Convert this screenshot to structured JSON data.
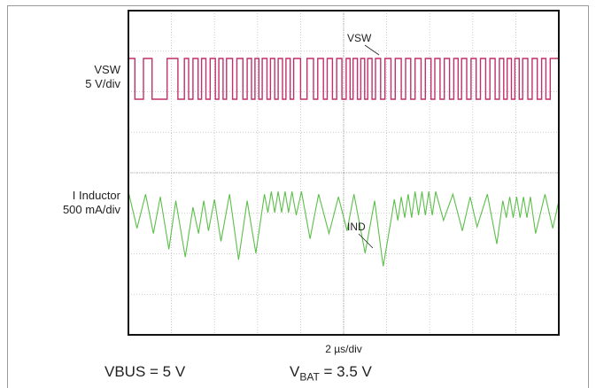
{
  "chart_data": {
    "type": "line",
    "title": "",
    "xlabel": "2 µs/div",
    "grid": true,
    "divisions": {
      "x": 10,
      "y": 8
    },
    "series": [
      {
        "name": "VSW",
        "axis_label": [
          "VSW",
          "5 V/div"
        ],
        "color": "#c0306a",
        "kind": "square-wave",
        "high": 1,
        "low": 0,
        "segments": [
          [
            0.0,
            1
          ],
          [
            1.5,
            0
          ],
          [
            3.5,
            1
          ],
          [
            5.5,
            0
          ],
          [
            9.0,
            1
          ],
          [
            11.5,
            0
          ],
          [
            13.0,
            1
          ],
          [
            14.0,
            0
          ],
          [
            15.0,
            1
          ],
          [
            16.2,
            0
          ],
          [
            17.0,
            1
          ],
          [
            18.0,
            0
          ],
          [
            19.0,
            1
          ],
          [
            20.2,
            0
          ],
          [
            21.0,
            1
          ],
          [
            22.0,
            0
          ],
          [
            22.8,
            1
          ],
          [
            24.2,
            0
          ],
          [
            25.2,
            1
          ],
          [
            26.6,
            0
          ],
          [
            27.6,
            1
          ],
          [
            28.6,
            0
          ],
          [
            29.4,
            1
          ],
          [
            30.3,
            0
          ],
          [
            31.1,
            1
          ],
          [
            32.2,
            0
          ],
          [
            33.0,
            1
          ],
          [
            34.0,
            0
          ],
          [
            34.8,
            1
          ],
          [
            35.8,
            0
          ],
          [
            36.6,
            1
          ],
          [
            37.6,
            0
          ],
          [
            38.4,
            1
          ],
          [
            40.0,
            0
          ],
          [
            41.5,
            1
          ],
          [
            43.0,
            0
          ],
          [
            44.0,
            1
          ],
          [
            45.3,
            0
          ],
          [
            46.2,
            1
          ],
          [
            47.4,
            0
          ],
          [
            48.4,
            1
          ],
          [
            49.6,
            0
          ],
          [
            50.6,
            1
          ],
          [
            51.5,
            0
          ],
          [
            52.2,
            1
          ],
          [
            53.2,
            0
          ],
          [
            54.0,
            1
          ],
          [
            54.9,
            0
          ],
          [
            55.6,
            1
          ],
          [
            56.6,
            0
          ],
          [
            57.4,
            1
          ],
          [
            58.6,
            0
          ],
          [
            59.6,
            1
          ],
          [
            61.0,
            0
          ],
          [
            62.0,
            1
          ],
          [
            63.4,
            0
          ],
          [
            64.4,
            1
          ],
          [
            65.6,
            0
          ],
          [
            66.6,
            1
          ],
          [
            68.0,
            0
          ],
          [
            69.0,
            1
          ],
          [
            70.3,
            0
          ],
          [
            71.2,
            1
          ],
          [
            72.4,
            0
          ],
          [
            73.4,
            1
          ],
          [
            74.6,
            0
          ],
          [
            75.6,
            1
          ],
          [
            76.6,
            0
          ],
          [
            77.4,
            1
          ],
          [
            78.6,
            0
          ],
          [
            79.6,
            1
          ],
          [
            80.8,
            0
          ],
          [
            81.8,
            1
          ],
          [
            83.0,
            0
          ],
          [
            84.0,
            1
          ],
          [
            85.2,
            0
          ],
          [
            86.2,
            1
          ],
          [
            87.2,
            0
          ],
          [
            88.0,
            1
          ],
          [
            89.0,
            0
          ],
          [
            89.8,
            1
          ],
          [
            90.8,
            0
          ],
          [
            91.6,
            1
          ],
          [
            92.8,
            0
          ],
          [
            93.8,
            1
          ],
          [
            95.0,
            0
          ],
          [
            96.0,
            1
          ],
          [
            97.0,
            0
          ],
          [
            98.0,
            1
          ],
          [
            100.0,
            1
          ]
        ]
      },
      {
        "name": "IND",
        "axis_label": [
          "I Inductor",
          "500 mA/div"
        ],
        "color": "#5cbf4a",
        "kind": "triangle",
        "points": [
          [
            0.0,
            0.62
          ],
          [
            2.0,
            0.34
          ],
          [
            4.0,
            0.6
          ],
          [
            5.8,
            0.3
          ],
          [
            7.4,
            0.58
          ],
          [
            9.4,
            0.18
          ],
          [
            11.0,
            0.55
          ],
          [
            13.2,
            0.12
          ],
          [
            15.0,
            0.5
          ],
          [
            16.3,
            0.3
          ],
          [
            17.5,
            0.55
          ],
          [
            18.6,
            0.32
          ],
          [
            20.0,
            0.56
          ],
          [
            21.5,
            0.24
          ],
          [
            23.5,
            0.6
          ],
          [
            25.6,
            0.1
          ],
          [
            27.6,
            0.55
          ],
          [
            29.6,
            0.15
          ],
          [
            31.6,
            0.6
          ],
          [
            32.4,
            0.46
          ],
          [
            33.2,
            0.62
          ],
          [
            34.0,
            0.46
          ],
          [
            34.8,
            0.62
          ],
          [
            35.6,
            0.46
          ],
          [
            36.4,
            0.62
          ],
          [
            37.2,
            0.46
          ],
          [
            38.0,
            0.62
          ],
          [
            39.0,
            0.44
          ],
          [
            40.2,
            0.62
          ],
          [
            42.2,
            0.26
          ],
          [
            44.2,
            0.6
          ],
          [
            46.6,
            0.3
          ],
          [
            48.8,
            0.58
          ],
          [
            50.8,
            0.32
          ],
          [
            52.4,
            0.6
          ],
          [
            55.0,
            0.15
          ],
          [
            57.2,
            0.55
          ],
          [
            59.2,
            0.05
          ],
          [
            61.0,
            0.4
          ],
          [
            61.8,
            0.56
          ],
          [
            62.6,
            0.4
          ],
          [
            63.4,
            0.58
          ],
          [
            64.2,
            0.42
          ],
          [
            65.0,
            0.6
          ],
          [
            65.8,
            0.42
          ],
          [
            66.6,
            0.62
          ],
          [
            67.4,
            0.44
          ],
          [
            68.2,
            0.62
          ],
          [
            69.0,
            0.44
          ],
          [
            69.8,
            0.62
          ],
          [
            70.6,
            0.44
          ],
          [
            71.4,
            0.62
          ],
          [
            73.2,
            0.4
          ],
          [
            75.4,
            0.6
          ],
          [
            77.6,
            0.32
          ],
          [
            79.4,
            0.58
          ],
          [
            81.0,
            0.35
          ],
          [
            83.4,
            0.6
          ],
          [
            85.6,
            0.22
          ],
          [
            87.0,
            0.55
          ],
          [
            87.8,
            0.42
          ],
          [
            88.6,
            0.58
          ],
          [
            89.4,
            0.42
          ],
          [
            90.2,
            0.58
          ],
          [
            91.0,
            0.42
          ],
          [
            91.8,
            0.58
          ],
          [
            92.6,
            0.42
          ],
          [
            93.4,
            0.58
          ],
          [
            94.6,
            0.3
          ],
          [
            96.8,
            0.6
          ],
          [
            98.6,
            0.34
          ],
          [
            100.0,
            0.55
          ]
        ]
      }
    ],
    "annotations": [
      {
        "text": "VSW",
        "series": "VSW"
      },
      {
        "text": "IND",
        "series": "IND"
      }
    ]
  },
  "conditions": {
    "vbus": "VBUS = 5 V",
    "vbat_prefix": "V",
    "vbat_sub": "BAT",
    "vbat_value": " = 3.5 V"
  }
}
